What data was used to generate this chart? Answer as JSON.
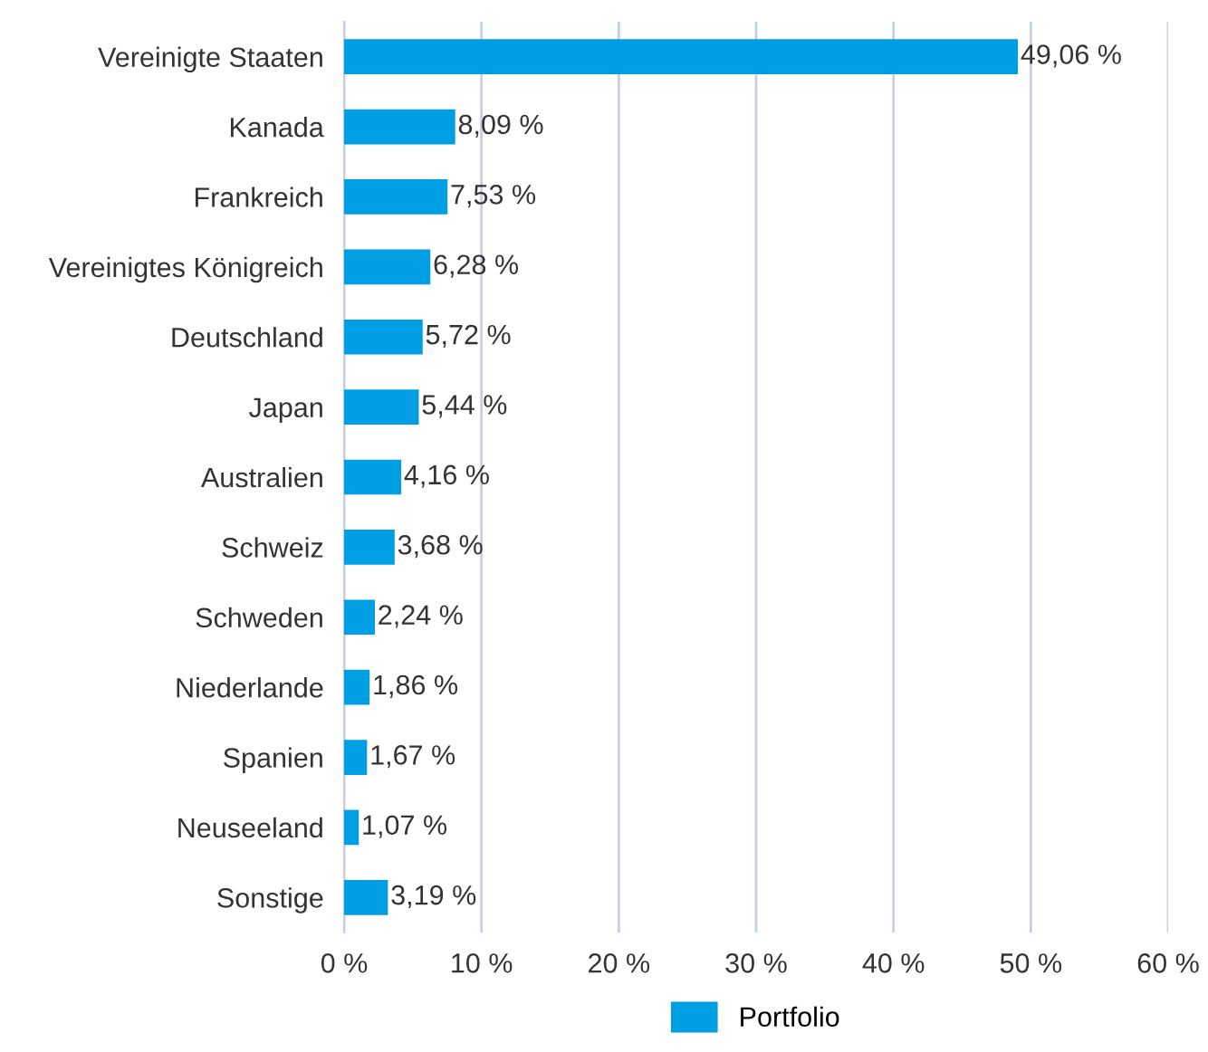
{
  "chart_data": {
    "type": "bar",
    "orientation": "horizontal",
    "categories": [
      "Vereinigte Staaten",
      "Kanada",
      "Frankreich",
      "Vereinigtes Königreich",
      "Deutschland",
      "Japan",
      "Australien",
      "Schweiz",
      "Schweden",
      "Niederlande",
      "Spanien",
      "Neuseeland",
      "Sonstige"
    ],
    "series": [
      {
        "name": "Portfolio",
        "color": "#009fe3",
        "values": [
          49.06,
          8.09,
          7.53,
          6.28,
          5.72,
          5.44,
          4.16,
          3.68,
          2.24,
          1.86,
          1.67,
          1.07,
          3.19
        ],
        "value_labels": [
          "49,06 %",
          "8,09 %",
          "7,53 %",
          "6,28 %",
          "5,72 %",
          "5,44 %",
          "4,16 %",
          "3,68 %",
          "2,24 %",
          "1,86 %",
          "1,67 %",
          "1,07 %",
          "3,19 %"
        ]
      }
    ],
    "xlim": [
      0,
      60
    ],
    "xticks": [
      {
        "value": 0,
        "label": "0 %"
      },
      {
        "value": 10,
        "label": "10 %"
      },
      {
        "value": 20,
        "label": "20 %"
      },
      {
        "value": 30,
        "label": "30 %"
      },
      {
        "value": 40,
        "label": "40 %"
      },
      {
        "value": 50,
        "label": "50 %"
      },
      {
        "value": 60,
        "label": "60 %"
      }
    ],
    "grid": "x",
    "legend": "bottom"
  }
}
